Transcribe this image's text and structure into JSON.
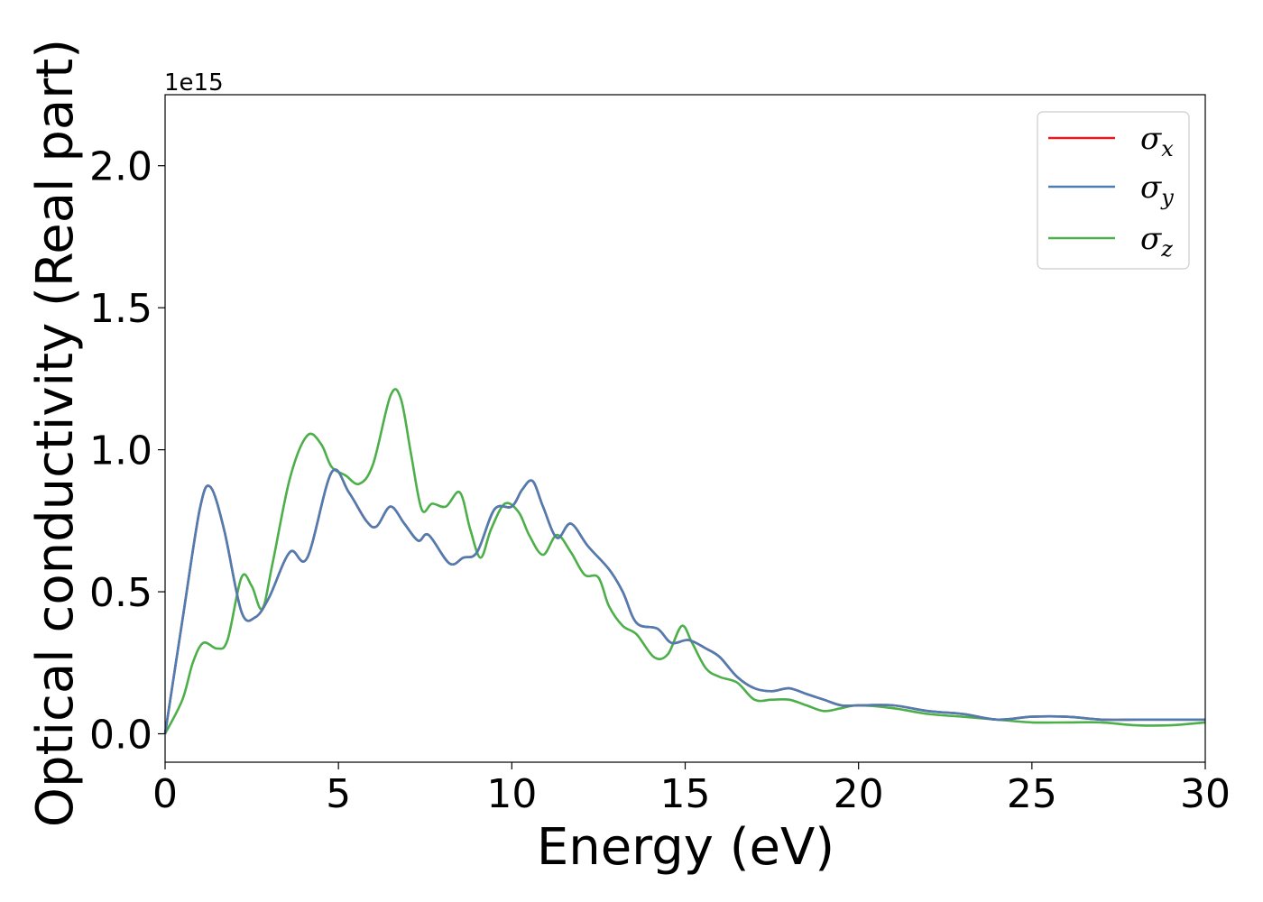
{
  "chart_data": {
    "type": "line",
    "xlabel": "Energy (eV)",
    "ylabel": "Optical conductivity (Real part)",
    "y_offset_label": "1e15",
    "xlim": [
      0,
      30
    ],
    "ylim": [
      -0.1,
      2.25
    ],
    "xticks": [
      0,
      5,
      10,
      15,
      20,
      25,
      30
    ],
    "xtick_labels": [
      "0",
      "5",
      "10",
      "15",
      "20",
      "25",
      "30"
    ],
    "yticks": [
      0.0,
      0.5,
      1.0,
      1.5,
      2.0
    ],
    "ytick_labels": [
      "0.0",
      "0.5",
      "1.0",
      "1.5",
      "2.0"
    ],
    "grid": false,
    "legend_position": "top-right",
    "series": [
      {
        "name": "σx",
        "symbol": "σ",
        "subscript": "x",
        "color": "#e41a1c",
        "x": [
          0,
          0.5,
          1.0,
          1.3,
          1.7,
          2.2,
          2.6,
          3.0,
          3.6,
          4.1,
          4.8,
          5.3,
          5.8,
          6.1,
          6.5,
          6.9,
          7.3,
          7.6,
          8.2,
          8.6,
          9.0,
          9.5,
          10.0,
          10.3,
          10.6,
          10.9,
          11.3,
          11.7,
          12.2,
          12.8,
          13.2,
          13.6,
          14.2,
          14.6,
          15.1,
          15.6,
          16.0,
          16.5,
          17.0,
          17.5,
          18.0,
          18.5,
          19.0,
          19.5,
          20.0,
          21.0,
          22.0,
          23.0,
          24.0,
          25.0,
          26.0,
          27.0,
          28.0,
          29.0,
          30.0
        ],
        "y": [
          0.0,
          0.4,
          0.79,
          0.87,
          0.72,
          0.43,
          0.41,
          0.48,
          0.64,
          0.62,
          0.92,
          0.85,
          0.75,
          0.73,
          0.8,
          0.74,
          0.68,
          0.7,
          0.6,
          0.62,
          0.64,
          0.79,
          0.8,
          0.86,
          0.89,
          0.8,
          0.69,
          0.74,
          0.66,
          0.58,
          0.5,
          0.39,
          0.37,
          0.32,
          0.33,
          0.3,
          0.27,
          0.2,
          0.16,
          0.15,
          0.16,
          0.14,
          0.12,
          0.1,
          0.1,
          0.1,
          0.08,
          0.07,
          0.05,
          0.06,
          0.06,
          0.05,
          0.05,
          0.05,
          0.05
        ]
      },
      {
        "name": "σy",
        "symbol": "σ",
        "subscript": "y",
        "color": "#4e7db2",
        "x": [
          0,
          0.5,
          1.0,
          1.3,
          1.7,
          2.2,
          2.6,
          3.0,
          3.6,
          4.1,
          4.8,
          5.3,
          5.8,
          6.1,
          6.5,
          6.9,
          7.3,
          7.6,
          8.2,
          8.6,
          9.0,
          9.5,
          10.0,
          10.3,
          10.6,
          10.9,
          11.3,
          11.7,
          12.2,
          12.8,
          13.2,
          13.6,
          14.2,
          14.6,
          15.1,
          15.6,
          16.0,
          16.5,
          17.0,
          17.5,
          18.0,
          18.5,
          19.0,
          19.5,
          20.0,
          21.0,
          22.0,
          23.0,
          24.0,
          25.0,
          26.0,
          27.0,
          28.0,
          29.0,
          30.0
        ],
        "y": [
          0.0,
          0.4,
          0.79,
          0.87,
          0.72,
          0.43,
          0.41,
          0.48,
          0.64,
          0.62,
          0.92,
          0.85,
          0.75,
          0.73,
          0.8,
          0.74,
          0.68,
          0.7,
          0.6,
          0.62,
          0.64,
          0.79,
          0.8,
          0.86,
          0.89,
          0.8,
          0.69,
          0.74,
          0.66,
          0.58,
          0.5,
          0.39,
          0.37,
          0.32,
          0.33,
          0.3,
          0.27,
          0.2,
          0.16,
          0.15,
          0.16,
          0.14,
          0.12,
          0.1,
          0.1,
          0.1,
          0.08,
          0.07,
          0.05,
          0.06,
          0.06,
          0.05,
          0.05,
          0.05,
          0.05
        ]
      },
      {
        "name": "σz",
        "symbol": "σ",
        "subscript": "z",
        "color": "#4daf4a",
        "x": [
          0,
          0.5,
          0.8,
          1.1,
          1.5,
          1.8,
          2.2,
          2.5,
          2.8,
          3.1,
          3.6,
          4.1,
          4.5,
          4.8,
          5.2,
          5.6,
          6.0,
          6.5,
          6.8,
          7.1,
          7.4,
          7.7,
          8.1,
          8.5,
          8.8,
          9.1,
          9.4,
          9.8,
          10.2,
          10.5,
          10.9,
          11.3,
          11.7,
          12.1,
          12.5,
          12.8,
          13.2,
          13.6,
          14.1,
          14.5,
          14.9,
          15.2,
          15.6,
          16.0,
          16.5,
          17.0,
          17.5,
          18.0,
          18.5,
          19.0,
          19.5,
          20.0,
          21.0,
          22.0,
          23.0,
          24.0,
          25.0,
          26.0,
          27.0,
          28.0,
          29.0,
          30.0
        ],
        "y": [
          0.0,
          0.12,
          0.25,
          0.32,
          0.3,
          0.33,
          0.55,
          0.52,
          0.44,
          0.6,
          0.9,
          1.05,
          1.02,
          0.94,
          0.91,
          0.88,
          0.95,
          1.19,
          1.18,
          0.98,
          0.79,
          0.81,
          0.8,
          0.85,
          0.72,
          0.62,
          0.72,
          0.81,
          0.78,
          0.7,
          0.63,
          0.7,
          0.64,
          0.56,
          0.55,
          0.45,
          0.38,
          0.35,
          0.27,
          0.28,
          0.38,
          0.32,
          0.23,
          0.2,
          0.18,
          0.12,
          0.12,
          0.12,
          0.1,
          0.08,
          0.09,
          0.1,
          0.09,
          0.07,
          0.06,
          0.05,
          0.04,
          0.04,
          0.04,
          0.03,
          0.03,
          0.04
        ]
      }
    ]
  }
}
